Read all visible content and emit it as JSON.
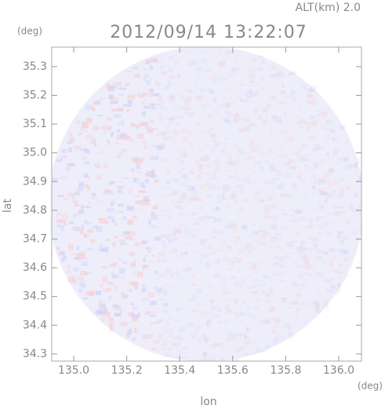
{
  "chart_data": {
    "type": "radar-map",
    "title": "2012/09/14 13:22:07",
    "subtitle": "ALT(km) 2.0",
    "xlabel": "lon",
    "ylabel": "lat",
    "x_unit": "(deg)",
    "y_unit": "(deg)",
    "xlim": [
      134.917,
      136.086
    ],
    "ylim": [
      34.275,
      35.368
    ],
    "xticks": [
      {
        "value": 135,
        "label": "135.0"
      },
      135.2,
      135.4,
      135.6,
      135.8,
      {
        "value": 136,
        "label": "136.0"
      }
    ],
    "yticks": [
      34.3,
      34.4,
      34.5,
      34.6,
      34.7,
      34.8,
      34.9,
      {
        "value": 35,
        "label": "35.0"
      },
      35.1,
      35.2,
      35.3
    ]
  }
}
